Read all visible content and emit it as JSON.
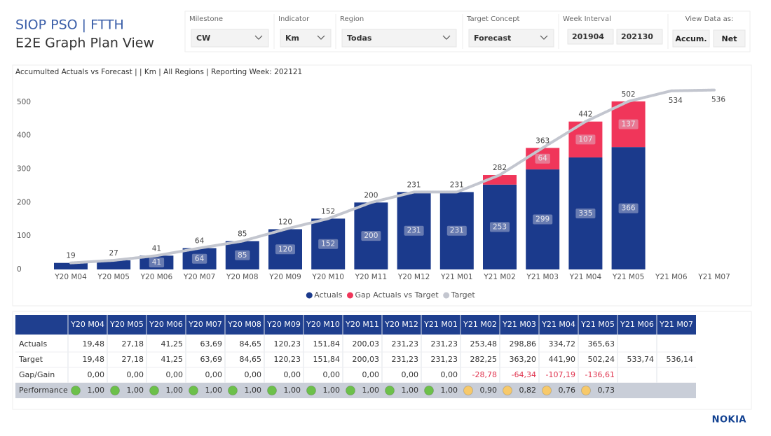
{
  "header": {
    "title": "SIOP PSO | FTTH",
    "subtitle": "E2E Graph Plan View"
  },
  "filters": [
    {
      "label": "Milestone",
      "value": "CW"
    },
    {
      "label": "Indicator",
      "value": "Km"
    },
    {
      "label": "Region",
      "value": "Todas"
    },
    {
      "label": "Target Concept",
      "value": "Forecast"
    }
  ],
  "week_interval": {
    "label": "Week Interval",
    "values": [
      "201904",
      "202130"
    ]
  },
  "view_data_as": {
    "label": "View Data as:",
    "options": [
      "Accum.",
      "Net"
    ]
  },
  "chart_data": {
    "type": "bar",
    "title": "Accumulted Actuals vs Forecast | | Km | All Regions | Reporting Week: 202121",
    "categories": [
      "Y20 M04",
      "Y20 M05",
      "Y20 M06",
      "Y20 M07",
      "Y20 M08",
      "Y20 M09",
      "Y20 M10",
      "Y20 M11",
      "Y20 M12",
      "Y21 M01",
      "Y21 M02",
      "Y21 M03",
      "Y21 M04",
      "Y21 M05",
      "Y21 M06",
      "Y21 M07"
    ],
    "series": [
      {
        "name": "Actuals",
        "color": "#1b3a8c",
        "values": [
          19.48,
          27.18,
          41.25,
          63.69,
          84.65,
          120.23,
          151.84,
          200.03,
          231.23,
          231.23,
          253.48,
          298.86,
          334.72,
          365.63,
          null,
          null
        ],
        "value_labels": [
          null,
          null,
          "41",
          "64",
          "85",
          "120",
          "152",
          "200",
          "231",
          "231",
          "253",
          "299",
          "335",
          "366",
          null,
          null
        ]
      },
      {
        "name": "Gap Actuals vs Target",
        "color": "#f0365a",
        "values": [
          0,
          0,
          0,
          0,
          0,
          0,
          0,
          0,
          0,
          0,
          28.78,
          64.34,
          107.19,
          136.61,
          null,
          null
        ],
        "value_labels": [
          null,
          null,
          null,
          null,
          null,
          null,
          null,
          null,
          null,
          null,
          null,
          "64",
          "107",
          "137",
          null,
          null
        ]
      },
      {
        "name": "Target",
        "color": "#c3c6cf",
        "type": "line",
        "values": [
          19.48,
          27.18,
          41.25,
          63.69,
          84.65,
          120.23,
          151.84,
          200.03,
          231.23,
          231.23,
          282.25,
          363.2,
          441.9,
          502.24,
          533.74,
          536.14
        ],
        "value_labels": [
          "19",
          "27",
          "41",
          "64",
          "85",
          "120",
          "152",
          "200",
          "231",
          "231",
          "282",
          "363",
          "442",
          "502",
          "534",
          "536"
        ]
      }
    ],
    "ylim": [
      0,
      550
    ],
    "yticks": [
      0,
      100,
      200,
      300,
      400,
      500
    ],
    "grid": false,
    "legend": "bottom"
  },
  "table": {
    "columns": [
      "Y20 M04",
      "Y20 M05",
      "Y20 M06",
      "Y20 M07",
      "Y20 M08",
      "Y20 M09",
      "Y20 M10",
      "Y20 M11",
      "Y20 M12",
      "Y21 M01",
      "Y21 M02",
      "Y21 M03",
      "Y21 M04",
      "Y21 M05",
      "Y21 M06",
      "Y21 M07"
    ],
    "rows": [
      {
        "label": "Actuals",
        "cells": [
          "19,48",
          "27,18",
          "41,25",
          "63,69",
          "84,65",
          "120,23",
          "151,84",
          "200,03",
          "231,23",
          "231,23",
          "253,48",
          "298,86",
          "334,72",
          "365,63",
          null,
          null
        ]
      },
      {
        "label": "Target",
        "cells": [
          "19,48",
          "27,18",
          "41,25",
          "63,69",
          "84,65",
          "120,23",
          "151,84",
          "200,03",
          "231,23",
          "231,23",
          "282,25",
          "363,20",
          "441,90",
          "502,24",
          "533,74",
          "536,14"
        ]
      },
      {
        "label": "Gap/Gain",
        "cells": [
          "0,00",
          "0,00",
          "0,00",
          "0,00",
          "0,00",
          "0,00",
          "0,00",
          "0,00",
          "0,00",
          "0,00",
          "-28,78",
          "-64,34",
          "-107,19",
          "-136,61",
          null,
          null
        ]
      },
      {
        "label": "Performance",
        "cells": [
          "1,00",
          "1,00",
          "1,00",
          "1,00",
          "1,00",
          "1,00",
          "1,00",
          "1,00",
          "1,00",
          "1,00",
          "0,90",
          "0,82",
          "0,76",
          "0,73",
          null,
          null
        ],
        "icon_colors": [
          "#6cc04a",
          "#6cc04a",
          "#6cc04a",
          "#6cc04a",
          "#6cc04a",
          "#6cc04a",
          "#6cc04a",
          "#6cc04a",
          "#6cc04a",
          "#6cc04a",
          "#f7c96a",
          "#f7c96a",
          "#f7c96a",
          "#f7c96a",
          null,
          null
        ]
      }
    ]
  },
  "footer": {
    "logo": "NOKIA"
  }
}
